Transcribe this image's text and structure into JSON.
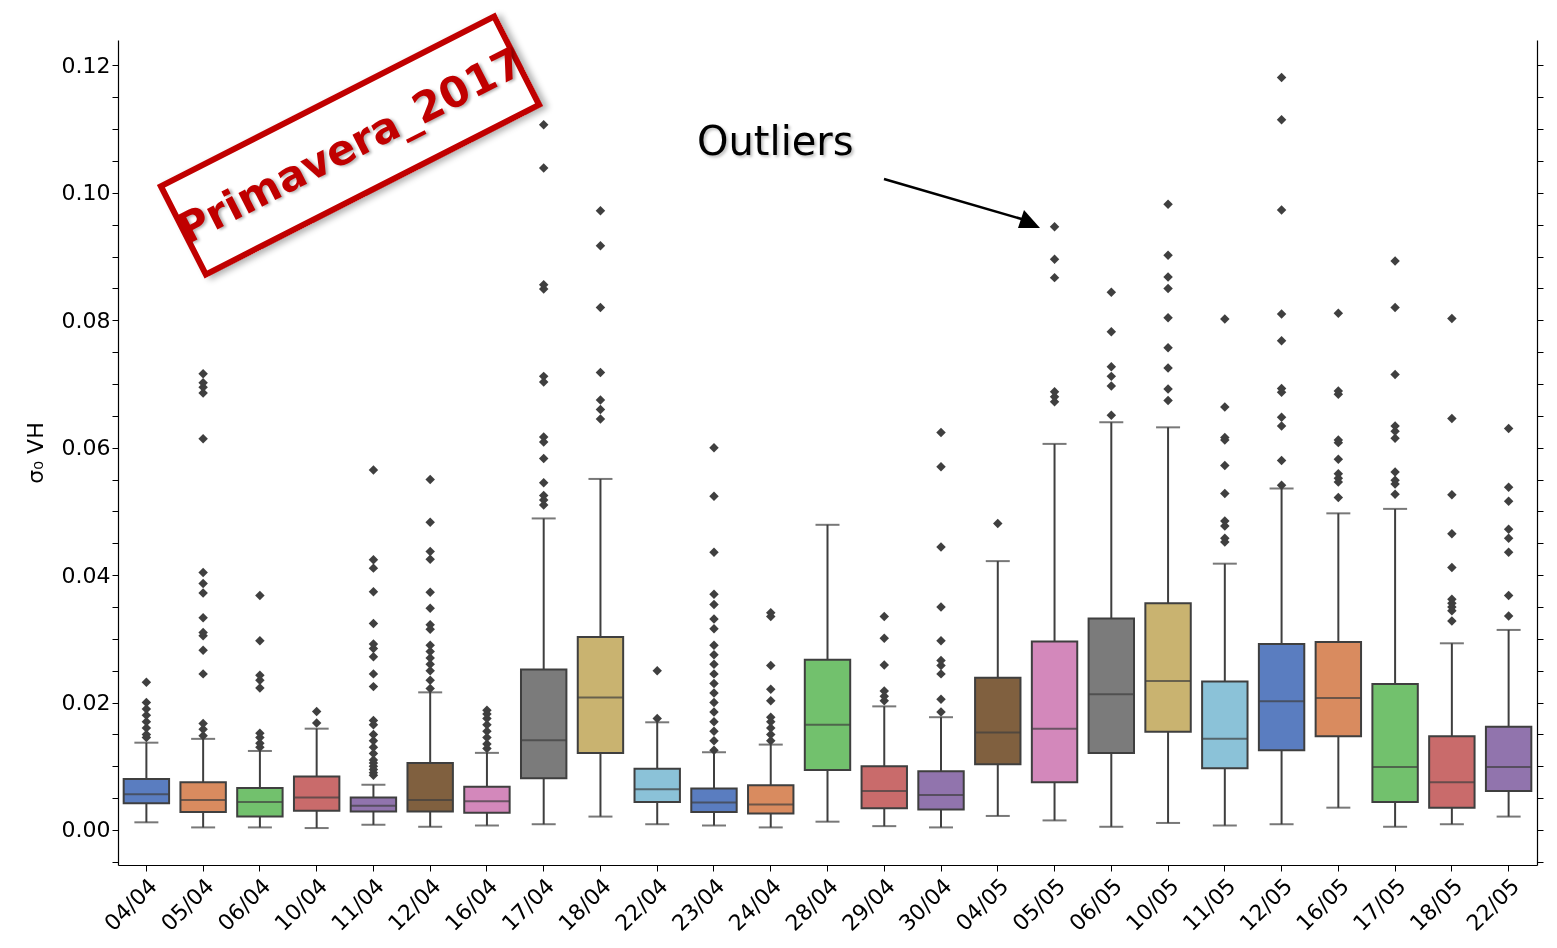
{
  "chart_data": {
    "type": "box",
    "ylabel": "σ₀ VH",
    "categories": [
      "04/04",
      "05/04",
      "06/04",
      "10/04",
      "11/04",
      "12/04",
      "16/04",
      "17/04",
      "18/04",
      "22/04",
      "23/04",
      "24/04",
      "28/04",
      "29/04",
      "30/04",
      "04/05",
      "05/05",
      "06/05",
      "10/05",
      "11/05",
      "12/05",
      "16/05",
      "17/05",
      "18/05",
      "22/05"
    ],
    "colors": [
      "#5a7dc0",
      "#d98b5f",
      "#72c16d",
      "#c96b6b",
      "#9174ad",
      "#80603f",
      "#d388bb",
      "#7b7b7b",
      "#c9b370",
      "#8bc2d8",
      "#5a7dc0",
      "#d98b5f",
      "#72c16d",
      "#c96b6b",
      "#9174ad",
      "#80603f",
      "#d388bb",
      "#7b7b7b",
      "#c9b370",
      "#8bc2d8",
      "#5a7dc0",
      "#d98b5f",
      "#72c16d",
      "#c96b6b",
      "#9174ad"
    ],
    "boxes": [
      {
        "low": 0.0012,
        "q1": 0.0042,
        "median": 0.0056,
        "q3": 0.008,
        "high": 0.0137,
        "outliers": [
          0.0145,
          0.015,
          0.016,
          0.017,
          0.018,
          0.019,
          0.02,
          0.0232
        ]
      },
      {
        "low": 0.0004,
        "q1": 0.0028,
        "median": 0.0047,
        "q3": 0.0075,
        "high": 0.0143,
        "outliers": [
          0.0148,
          0.0158,
          0.0167,
          0.0245,
          0.0282,
          0.0305,
          0.031,
          0.0333,
          0.0372,
          0.0387,
          0.0404,
          0.0614,
          0.0686,
          0.0695,
          0.0702,
          0.0716
        ]
      },
      {
        "low": 0.0004,
        "q1": 0.0021,
        "median": 0.0044,
        "q3": 0.0066,
        "high": 0.0124,
        "outliers": [
          0.013,
          0.0136,
          0.0145,
          0.0152,
          0.0223,
          0.0235,
          0.0243,
          0.0297,
          0.0368
        ]
      },
      {
        "low": 0.0003,
        "q1": 0.003,
        "median": 0.0051,
        "q3": 0.0084,
        "high": 0.0159,
        "outliers": [
          0.0168,
          0.0186
        ]
      },
      {
        "low": 0.0008,
        "q1": 0.0029,
        "median": 0.0038,
        "q3": 0.0051,
        "high": 0.0071,
        "outliers": [
          0.0086,
          0.009,
          0.0095,
          0.01,
          0.0105,
          0.011,
          0.012,
          0.013,
          0.014,
          0.015,
          0.0165,
          0.0172,
          0.0225,
          0.0245,
          0.0272,
          0.0285,
          0.0292,
          0.0324,
          0.0374,
          0.0411,
          0.0424,
          0.0565
        ]
      },
      {
        "low": 0.0005,
        "q1": 0.0029,
        "median": 0.0047,
        "q3": 0.0105,
        "high": 0.0216,
        "outliers": [
          0.0222,
          0.0235,
          0.025,
          0.026,
          0.027,
          0.028,
          0.029,
          0.0315,
          0.0322,
          0.0348,
          0.0373,
          0.0425,
          0.0437,
          0.0483,
          0.055
        ]
      },
      {
        "low": 0.0007,
        "q1": 0.0027,
        "median": 0.0045,
        "q3": 0.0068,
        "high": 0.0121,
        "outliers": [
          0.0128,
          0.0135,
          0.0145,
          0.0155,
          0.0165,
          0.0175,
          0.0182,
          0.0188
        ]
      },
      {
        "low": 0.0009,
        "q1": 0.0081,
        "median": 0.0141,
        "q3": 0.0252,
        "high": 0.0489,
        "outliers": [
          0.051,
          0.0518,
          0.0525,
          0.0545,
          0.0583,
          0.0609,
          0.0617,
          0.0703,
          0.0712,
          0.0849,
          0.0856,
          0.1039,
          0.1107
        ]
      },
      {
        "low": 0.0021,
        "q1": 0.0121,
        "median": 0.0208,
        "q3": 0.0303,
        "high": 0.0551,
        "outliers": [
          0.0645,
          0.066,
          0.0675,
          0.0718,
          0.082,
          0.0917,
          0.0972
        ]
      },
      {
        "low": 0.0009,
        "q1": 0.0044,
        "median": 0.0064,
        "q3": 0.0096,
        "high": 0.0169,
        "outliers": [
          0.0175,
          0.025
        ]
      },
      {
        "low": 0.0007,
        "q1": 0.0028,
        "median": 0.0043,
        "q3": 0.0065,
        "high": 0.0122,
        "outliers": [
          0.0125,
          0.014,
          0.0155,
          0.017,
          0.0185,
          0.02,
          0.0215,
          0.023,
          0.0245,
          0.026,
          0.0275,
          0.029,
          0.0316,
          0.0331,
          0.0354,
          0.037,
          0.0436,
          0.0524,
          0.06
        ]
      },
      {
        "low": 0.0004,
        "q1": 0.0026,
        "median": 0.004,
        "q3": 0.007,
        "high": 0.0134,
        "outliers": [
          0.014,
          0.015,
          0.016,
          0.017,
          0.0177,
          0.0203,
          0.0221,
          0.0258,
          0.0335,
          0.0341
        ]
      },
      {
        "low": 0.0013,
        "q1": 0.0094,
        "median": 0.0165,
        "q3": 0.0267,
        "high": 0.0479
      },
      {
        "low": 0.0006,
        "q1": 0.0034,
        "median": 0.0061,
        "q3": 0.01,
        "high": 0.0194,
        "outliers": [
          0.0203,
          0.021,
          0.0218,
          0.0259,
          0.0301,
          0.0335
        ]
      },
      {
        "low": 0.0004,
        "q1": 0.0032,
        "median": 0.0055,
        "q3": 0.0092,
        "high": 0.0177,
        "outliers": [
          0.0185,
          0.0205,
          0.0245,
          0.0258,
          0.0266,
          0.0297,
          0.035,
          0.0444,
          0.057,
          0.0624
        ]
      },
      {
        "low": 0.0022,
        "q1": 0.0103,
        "median": 0.0153,
        "q3": 0.0239,
        "high": 0.0422,
        "outliers": [
          0.0481
        ]
      },
      {
        "low": 0.0015,
        "q1": 0.0075,
        "median": 0.0159,
        "q3": 0.0296,
        "high": 0.0606,
        "outliers": [
          0.0672,
          0.068,
          0.0688,
          0.0867,
          0.0896,
          0.0947
        ]
      },
      {
        "low": 0.0005,
        "q1": 0.0121,
        "median": 0.0213,
        "q3": 0.0332,
        "high": 0.064,
        "outliers": [
          0.0651,
          0.0697,
          0.0712,
          0.0727,
          0.0782,
          0.0844
        ]
      },
      {
        "low": 0.0011,
        "q1": 0.0154,
        "median": 0.0234,
        "q3": 0.0356,
        "high": 0.0632,
        "outliers": [
          0.0674,
          0.0692,
          0.0725,
          0.0757,
          0.0804,
          0.085,
          0.0868,
          0.0902,
          0.0982
        ]
      },
      {
        "low": 0.0007,
        "q1": 0.0097,
        "median": 0.0143,
        "q3": 0.0233,
        "high": 0.0418,
        "outliers": [
          0.0452,
          0.0458,
          0.0477,
          0.0485,
          0.0528,
          0.0572,
          0.0612,
          0.0616,
          0.0664,
          0.0802
        ]
      },
      {
        "low": 0.0009,
        "q1": 0.0125,
        "median": 0.0202,
        "q3": 0.0292,
        "high": 0.0536,
        "outliers": [
          0.0541,
          0.058,
          0.0634,
          0.0648,
          0.0687,
          0.0693,
          0.0768,
          0.081,
          0.0973,
          0.1115,
          0.1181
        ]
      },
      {
        "low": 0.0035,
        "q1": 0.0147,
        "median": 0.0207,
        "q3": 0.0295,
        "high": 0.0497,
        "outliers": [
          0.0522,
          0.0546,
          0.0552,
          0.0559,
          0.0582,
          0.0608,
          0.0612,
          0.0684,
          0.0689,
          0.0811
        ]
      },
      {
        "low": 0.0005,
        "q1": 0.0044,
        "median": 0.0099,
        "q3": 0.0229,
        "high": 0.0504,
        "outliers": [
          0.0527,
          0.0543,
          0.0549,
          0.0562,
          0.0615,
          0.0626,
          0.0634,
          0.0715,
          0.082,
          0.0893
        ]
      },
      {
        "low": 0.0009,
        "q1": 0.0035,
        "median": 0.0075,
        "q3": 0.0147,
        "high": 0.0293,
        "outliers": [
          0.0328,
          0.0344,
          0.035,
          0.0356,
          0.0362,
          0.0412,
          0.0465,
          0.0526,
          0.0646,
          0.0803
        ]
      },
      {
        "low": 0.0021,
        "q1": 0.0061,
        "median": 0.0099,
        "q3": 0.0162,
        "high": 0.0314,
        "outliers": [
          0.0336,
          0.0368,
          0.0436,
          0.0458,
          0.0472,
          0.0516,
          0.0538,
          0.063
        ]
      }
    ],
    "ylim": [
      -0.0055,
      0.124
    ],
    "yticks": [
      {
        "value": -0.005,
        "label": null
      },
      "0.00",
      {
        "value": 0.005,
        "label": null
      },
      {
        "value": 0.01,
        "label": null
      },
      {
        "value": 0.015,
        "label": null
      },
      {
        "value": 0.02,
        "label": "0.02"
      },
      {
        "value": 0.025,
        "label": null
      },
      {
        "value": 0.03,
        "label": null
      },
      {
        "value": 0.035,
        "label": null
      },
      {
        "value": 0.04,
        "label": "0.04"
      },
      {
        "value": 0.045,
        "label": null
      },
      {
        "value": 0.05,
        "label": null
      },
      {
        "value": 0.055,
        "label": null
      },
      {
        "value": 0.06,
        "label": "0.06"
      },
      {
        "value": 0.065,
        "label": null
      },
      {
        "value": 0.07,
        "label": null
      },
      {
        "value": 0.075,
        "label": null
      },
      {
        "value": 0.08,
        "label": "0.08"
      },
      {
        "value": 0.085,
        "label": null
      },
      {
        "value": 0.09,
        "label": null
      },
      {
        "value": 0.095,
        "label": null
      },
      {
        "value": 0.1,
        "label": "0.10"
      },
      {
        "value": 0.105,
        "label": null
      },
      {
        "value": 0.11,
        "label": null
      },
      {
        "value": 0.115,
        "label": null
      },
      {
        "value": 0.12,
        "label": "0.12"
      }
    ],
    "grid": false,
    "marker": "diamond",
    "annotations": [
      "Primavera_2017",
      "Outliers"
    ]
  }
}
